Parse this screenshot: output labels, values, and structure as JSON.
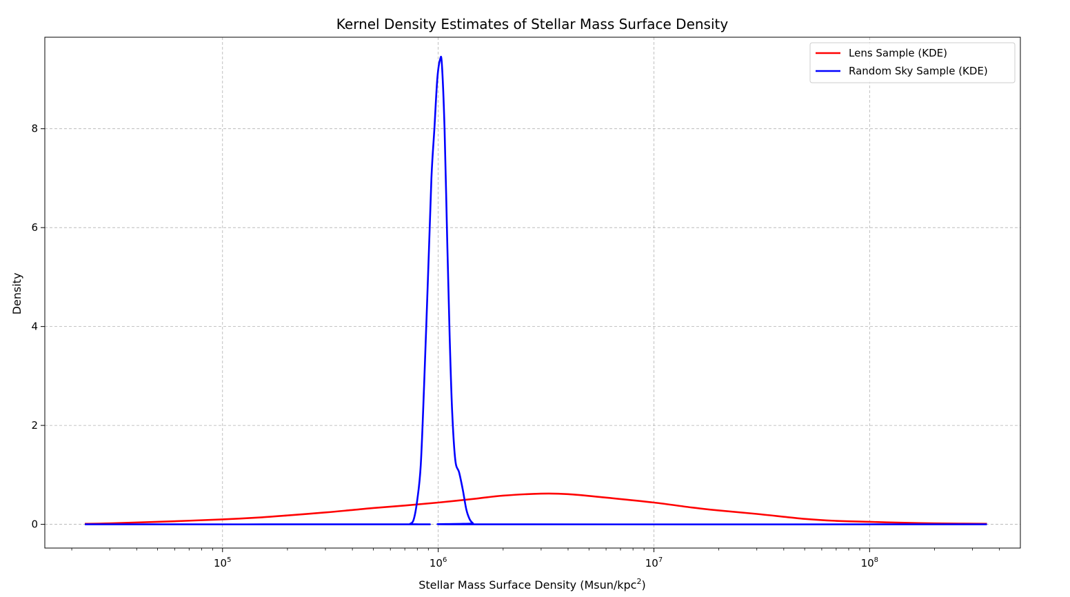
{
  "chart_data": {
    "type": "line",
    "title": "Kernel Density Estimates of Stellar Mass Surface Density",
    "xlabel": "Stellar Mass Surface Density (Msun/kpc",
    "xlabel_sup": "2",
    "xlabel_tail": ")",
    "ylabel": "Density",
    "xscale": "log",
    "xlim": [
      15000,
      500000000
    ],
    "ylim": [
      -0.48,
      9.85
    ],
    "grid": true,
    "legend_position": "top-right",
    "x_ticks": [
      {
        "value": 100000,
        "base": "10",
        "exp": "5"
      },
      {
        "value": 1000000,
        "base": "10",
        "exp": "6"
      },
      {
        "value": 10000000,
        "base": "10",
        "exp": "7"
      },
      {
        "value": 100000000,
        "base": "10",
        "exp": "8"
      }
    ],
    "y_ticks": [
      {
        "value": 0,
        "label": "0"
      },
      {
        "value": 2,
        "label": "2"
      },
      {
        "value": 4,
        "label": "4"
      },
      {
        "value": 6,
        "label": "6"
      },
      {
        "value": 8,
        "label": "8"
      }
    ],
    "series": [
      {
        "name": "Lens Sample (KDE)",
        "color": "#ff0000",
        "x": [
          23000,
          30000,
          50000,
          100000,
          150000,
          200000,
          300000,
          400000,
          500000,
          700000,
          1000000,
          1500000,
          2000000,
          3000000,
          4000000,
          6000000,
          10000000,
          15000000,
          20000000,
          30000000,
          50000000,
          70000000,
          100000000,
          150000000,
          200000000,
          350000000
        ],
        "y": [
          0.01,
          0.02,
          0.05,
          0.1,
          0.14,
          0.18,
          0.24,
          0.29,
          0.33,
          0.38,
          0.44,
          0.52,
          0.58,
          0.62,
          0.61,
          0.54,
          0.44,
          0.34,
          0.28,
          0.21,
          0.11,
          0.07,
          0.05,
          0.03,
          0.02,
          0.01
        ]
      },
      {
        "name": "Random Sky Sample (KDE)",
        "color": "#0000ff",
        "x": [
          23000,
          700000,
          740000,
          770000,
          800000,
          830000,
          860000,
          900000,
          930000,
          960000,
          990000,
          1020000,
          1040000,
          1070000,
          1100000,
          1130000,
          1160000,
          1200000,
          1250000,
          1300000,
          1350000,
          1400000,
          1450000,
          1500000,
          350000000
        ],
        "y": [
          0,
          0,
          0.01,
          0.1,
          0.5,
          1.2,
          2.8,
          5.2,
          7.0,
          8.0,
          9.0,
          9.4,
          9.3,
          8.0,
          5.8,
          3.8,
          2.3,
          1.3,
          1.05,
          0.7,
          0.3,
          0.1,
          0.02,
          0,
          0
        ]
      }
    ]
  }
}
